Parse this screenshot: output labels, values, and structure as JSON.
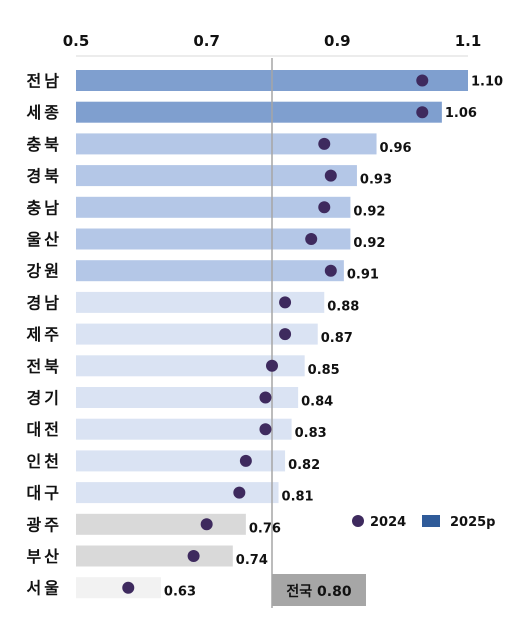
{
  "chart_data": {
    "type": "bar",
    "orientation": "horizontal",
    "xlim": [
      0.5,
      1.1
    ],
    "xticks": [
      "0.5",
      "0.7",
      "0.9",
      "1.1"
    ],
    "categories": [
      "전남",
      "세종",
      "충북",
      "경북",
      "충남",
      "울산",
      "강원",
      "경남",
      "제주",
      "전북",
      "경기",
      "대전",
      "인천",
      "대구",
      "광주",
      "부산",
      "서울"
    ],
    "series": [
      {
        "name": "2025p",
        "type": "bar",
        "values": [
          1.1,
          1.06,
          0.96,
          0.93,
          0.92,
          0.92,
          0.91,
          0.88,
          0.87,
          0.85,
          0.84,
          0.83,
          0.82,
          0.81,
          0.76,
          0.74,
          0.63
        ],
        "labels": [
          "1.10",
          "1.06",
          "0.96",
          "0.93",
          "0.92",
          "0.92",
          "0.91",
          "0.88",
          "0.87",
          "0.85",
          "0.84",
          "0.83",
          "0.82",
          "0.81",
          "0.76",
          "0.74",
          "0.63"
        ]
      },
      {
        "name": "2024",
        "type": "scatter",
        "values": [
          1.03,
          1.03,
          0.88,
          0.89,
          0.88,
          0.86,
          0.89,
          0.82,
          0.82,
          0.8,
          0.79,
          0.79,
          0.76,
          0.75,
          0.7,
          0.68,
          0.58
        ]
      }
    ],
    "bar_colors": [
      "#7f9fcf",
      "#7f9fcf",
      "#b4c7e7",
      "#b4c7e7",
      "#b4c7e7",
      "#b4c7e7",
      "#b4c7e7",
      "#dae3f3",
      "#dae3f3",
      "#dae3f3",
      "#dae3f3",
      "#dae3f3",
      "#dae3f3",
      "#dae3f3",
      "#d9d9d9",
      "#d9d9d9",
      "#f2f2f2"
    ],
    "dot_color": "#3e2a5e",
    "reference_line": {
      "value": 0.8,
      "label": "전국 0.80"
    },
    "legend": {
      "position": "bottom-right",
      "items": [
        {
          "label": "2024",
          "marker": "dot",
          "color": "#3e2a5e"
        },
        {
          "label": "2025p",
          "marker": "square",
          "color": "#2f5b99"
        }
      ]
    },
    "grid": false
  }
}
